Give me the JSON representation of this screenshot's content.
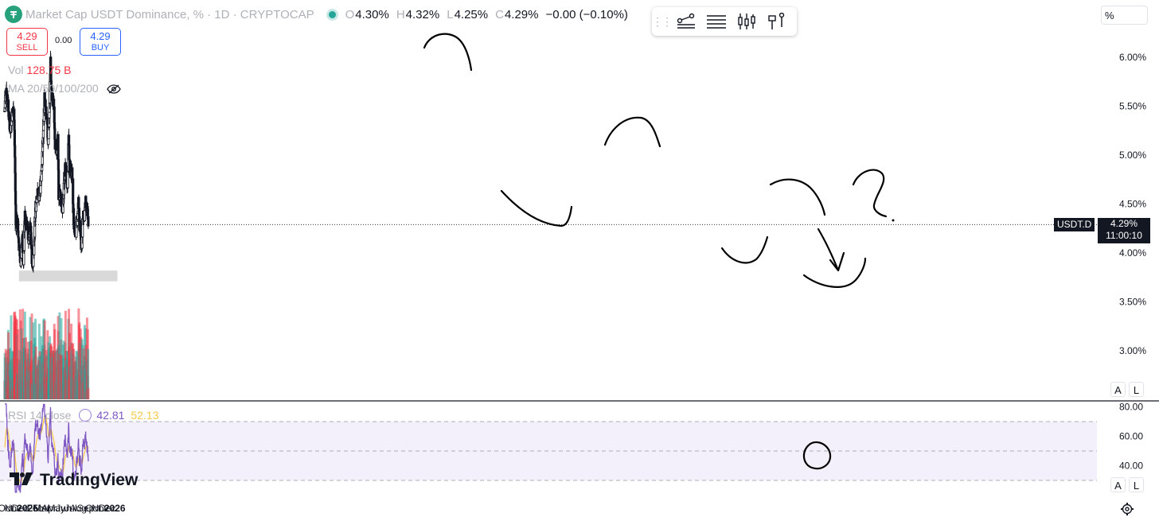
{
  "header": {
    "title": "Market Cap USDT Dominance, % · 1D · CRYPTOCAP",
    "ohlc": [
      {
        "k": "O",
        "v": "4.30%"
      },
      {
        "k": "H",
        "v": "4.32%"
      },
      {
        "k": "L",
        "v": "4.25%"
      },
      {
        "k": "C",
        "v": "4.29%"
      }
    ],
    "change": "−0.00 (−0.10%)",
    "logo_icon": "tether-logo-icon",
    "status_color": "#26a69a"
  },
  "trade": {
    "sell_price": "4.29",
    "sell_label": "SELL",
    "spread": "0.00",
    "buy_price": "4.29",
    "buy_label": "BUY"
  },
  "volume_legend": {
    "label": "Vol",
    "value": "128.75 B"
  },
  "ma_legend": {
    "label": "MA 20/50/100/200"
  },
  "toolbar": {
    "icons": [
      "drag-handle-icon",
      "trendline-tool-icon",
      "text-lines-tool-icon",
      "candles-tool-icon",
      "flag-tool-icon"
    ]
  },
  "scale_button": "%",
  "auto_label": "A",
  "log_label": "L",
  "rsi_legend": {
    "label": "RSI 14 close",
    "rsi": "42.81",
    "ma": "52.13"
  },
  "brand": "TradingView",
  "last_price": {
    "symbol": "USDT.D",
    "price": "4.29%",
    "countdown": "11:00:10"
  },
  "colors": {
    "up": "#26a69a",
    "down": "#f23645",
    "candle": "#131722",
    "rsi_line": "#7e57c2",
    "rsi_ma": "#f7c948",
    "rsi_band": "#f3effb",
    "support_zone": "#d9d9d9",
    "annotation": "#000000"
  },
  "chart_data": {
    "type": "candlestick",
    "y_axis_ticks": [
      "6.00%",
      "5.50%",
      "5.00%",
      "4.50%",
      "4.00%",
      "3.50%",
      "3.00%"
    ],
    "ylim": [
      2.55,
      6.45
    ],
    "x_axis_ticks": [
      "Oct",
      "Nov",
      "Dec",
      "2025",
      "Feb",
      "Mar",
      "Apr",
      "May",
      "Jun",
      "Jul",
      "Aug",
      "Sep",
      "Oct",
      "Nov",
      "Dec",
      "2026"
    ],
    "price_path": [
      {
        "x": "2024-09-27",
        "y": 5.45
      },
      {
        "x": "2024-10-03",
        "y": 5.72
      },
      {
        "x": "2024-10-10",
        "y": 5.55
      },
      {
        "x": "2024-10-20",
        "y": 5.25
      },
      {
        "x": "2024-10-28",
        "y": 5.42
      },
      {
        "x": "2024-11-05",
        "y": 5.48
      },
      {
        "x": "2024-11-09",
        "y": 4.98
      },
      {
        "x": "2024-11-13",
        "y": 4.3
      },
      {
        "x": "2024-11-20",
        "y": 4.3
      },
      {
        "x": "2024-11-27",
        "y": 4.05
      },
      {
        "x": "2024-12-05",
        "y": 3.88
      },
      {
        "x": "2024-12-10",
        "y": 4.18
      },
      {
        "x": "2024-12-15",
        "y": 3.92
      },
      {
        "x": "2024-12-20",
        "y": 4.38
      },
      {
        "x": "2024-12-28",
        "y": 4.32
      },
      {
        "x": "2025-01-07",
        "y": 4.12
      },
      {
        "x": "2025-01-14",
        "y": 4.3
      },
      {
        "x": "2025-01-20",
        "y": 3.88
      },
      {
        "x": "2025-01-27",
        "y": 3.98
      },
      {
        "x": "2025-02-03",
        "y": 4.45
      },
      {
        "x": "2025-02-10",
        "y": 4.62
      },
      {
        "x": "2025-02-18",
        "y": 4.55
      },
      {
        "x": "2025-02-25",
        "y": 4.72
      },
      {
        "x": "2025-03-03",
        "y": 4.95
      },
      {
        "x": "2025-03-08",
        "y": 5.25
      },
      {
        "x": "2025-03-13",
        "y": 5.58
      },
      {
        "x": "2025-03-20",
        "y": 5.4
      },
      {
        "x": "2025-03-28",
        "y": 5.15
      },
      {
        "x": "2025-04-03",
        "y": 5.5
      },
      {
        "x": "2025-04-07",
        "y": 6.0
      },
      {
        "x": "2025-04-10",
        "y": 5.65
      },
      {
        "x": "2025-04-16",
        "y": 5.55
      },
      {
        "x": "2025-04-22",
        "y": 5.5
      },
      {
        "x": "2025-04-27",
        "y": 5.05
      },
      {
        "x": "2025-05-03",
        "y": 5.06
      },
      {
        "x": "2025-05-08",
        "y": 5.15
      },
      {
        "x": "2025-05-11",
        "y": 4.6
      },
      {
        "x": "2025-05-20",
        "y": 4.55
      },
      {
        "x": "2025-05-27",
        "y": 4.45
      },
      {
        "x": "2025-06-03",
        "y": 4.72
      },
      {
        "x": "2025-06-08",
        "y": 4.88
      },
      {
        "x": "2025-06-15",
        "y": 4.62
      },
      {
        "x": "2025-06-20",
        "y": 4.9
      },
      {
        "x": "2025-06-22",
        "y": 5.18
      },
      {
        "x": "2025-06-25",
        "y": 4.92
      },
      {
        "x": "2025-07-03",
        "y": 4.82
      },
      {
        "x": "2025-07-08",
        "y": 4.78
      },
      {
        "x": "2025-07-12",
        "y": 4.38
      },
      {
        "x": "2025-07-18",
        "y": 4.2
      },
      {
        "x": "2025-07-23",
        "y": 4.24
      },
      {
        "x": "2025-07-28",
        "y": 4.35
      },
      {
        "x": "2025-08-02",
        "y": 4.52
      },
      {
        "x": "2025-08-06",
        "y": 4.3
      },
      {
        "x": "2025-08-10",
        "y": 4.25
      },
      {
        "x": "2025-08-14",
        "y": 4.0
      },
      {
        "x": "2025-08-18",
        "y": 4.22
      },
      {
        "x": "2025-08-22",
        "y": 4.42
      },
      {
        "x": "2025-08-26",
        "y": 4.38
      },
      {
        "x": "2025-09-02",
        "y": 4.52
      },
      {
        "x": "2025-09-08",
        "y": 4.4
      },
      {
        "x": "2025-09-12",
        "y": 4.29
      }
    ],
    "support_zone": {
      "from": "2024-11-26",
      "to": "2026-01-12",
      "low": 3.71,
      "high": 3.82
    },
    "rsi": {
      "ylim": [
        20,
        85
      ],
      "ticks": [
        "80.00",
        "60.00",
        "40.00"
      ],
      "bands": [
        70,
        50,
        30
      ],
      "last": 42.81,
      "last_ma": 52.13
    }
  }
}
